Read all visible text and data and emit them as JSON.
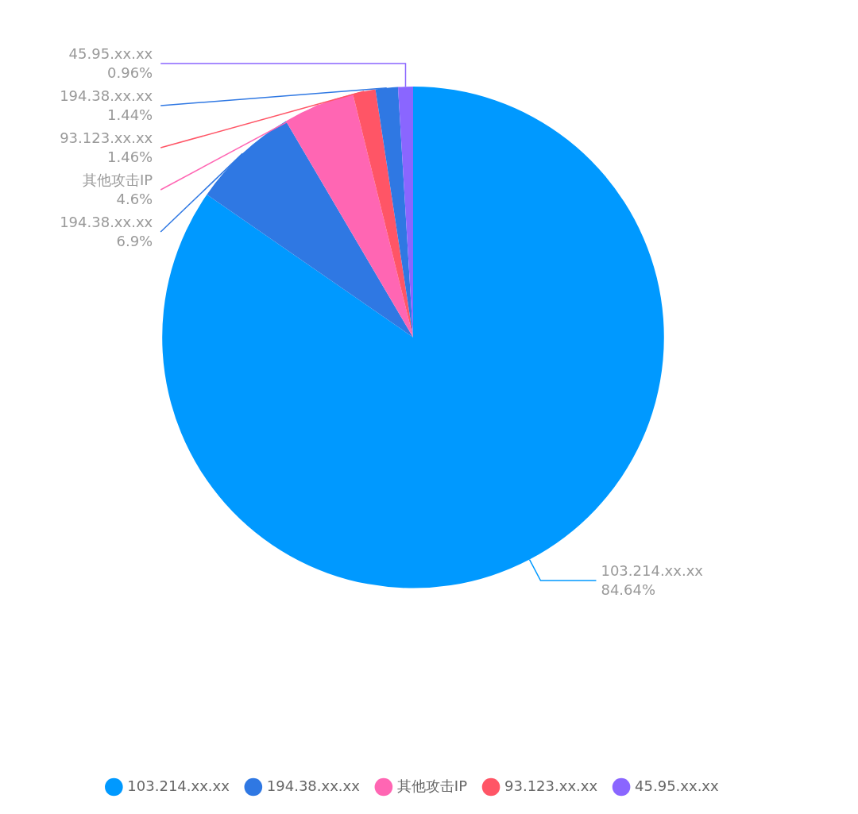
{
  "chart_data": {
    "type": "pie",
    "categories": [
      "103.214.xx.xx",
      "194.38.xx.xx",
      "其他攻击IP",
      "93.123.xx.xx",
      "194.38.xx.xx",
      "45.95.xx.xx"
    ],
    "values": [
      84.64,
      6.9,
      4.6,
      1.46,
      1.44,
      0.96
    ],
    "colors": [
      "#0099ff",
      "#2f78e3",
      "#ff66b3",
      "#ff5566",
      "#2f78e3",
      "#8a66ff"
    ],
    "value_labels": [
      "84.64%",
      "6.9%",
      "4.6%",
      "1.46%",
      "1.44%",
      "0.96%"
    ],
    "legend": "bottom"
  }
}
